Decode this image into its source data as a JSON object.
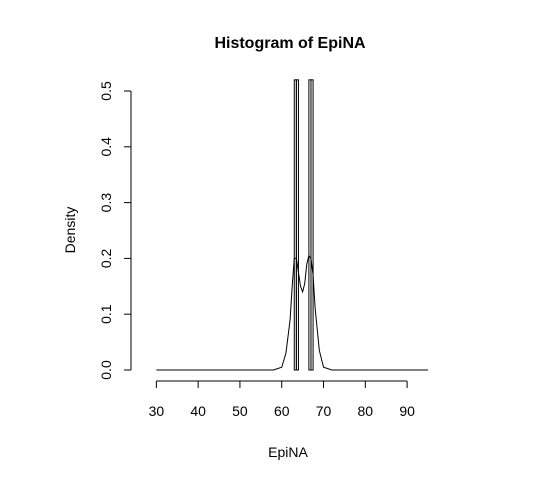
{
  "chart_data": {
    "type": "bar",
    "title": "Histogram of EpiNA",
    "xlabel": "EpiNA",
    "ylabel": "Density",
    "xlim": [
      28,
      95
    ],
    "ylim": [
      0,
      0.5
    ],
    "x_ticks": [
      "30",
      "40",
      "50",
      "60",
      "70",
      "80",
      "90"
    ],
    "y_ticks": [
      "0.0",
      "0.1",
      "0.2",
      "0.3",
      "0.4",
      "0.5"
    ],
    "bins": [
      {
        "x0": 63.0,
        "x1": 63.5,
        "density": 0.52
      },
      {
        "x0": 63.5,
        "x1": 64.0,
        "density": 0.52
      },
      {
        "x0": 66.5,
        "x1": 67.0,
        "density": 0.52
      },
      {
        "x0": 67.0,
        "x1": 67.5,
        "density": 0.52
      }
    ],
    "density_curve": {
      "x": [
        30,
        58,
        60,
        61,
        62,
        62.5,
        63,
        63.5,
        64,
        64.5,
        65,
        65.5,
        66,
        66.5,
        67,
        67.5,
        68,
        69,
        70,
        72,
        95
      ],
      "y": [
        0,
        0,
        0.005,
        0.03,
        0.09,
        0.15,
        0.2,
        0.2,
        0.175,
        0.15,
        0.14,
        0.155,
        0.19,
        0.205,
        0.2,
        0.17,
        0.11,
        0.035,
        0.005,
        0,
        0
      ]
    },
    "grid": false,
    "legend": "none"
  }
}
